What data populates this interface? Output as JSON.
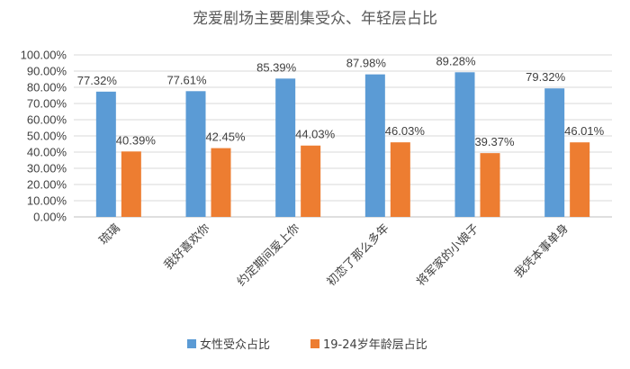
{
  "chart_data": {
    "type": "bar",
    "title": "宠爱剧场主要剧集受众、年轻层占比",
    "categories": [
      "琉璃",
      "我好喜欢你",
      "约定期间爱上你",
      "初恋了那么多年",
      "将军家的小娘子",
      "我凭本事单身"
    ],
    "series": [
      {
        "name": "女性受众占比",
        "values": [
          77.32,
          77.61,
          85.39,
          87.98,
          89.28,
          79.32
        ],
        "labels": [
          "77.32%",
          "77.61%",
          "85.39%",
          "87.98%",
          "89.28%",
          "79.32%"
        ],
        "color": "#5B9BD5"
      },
      {
        "name": "19-24岁年龄层占比",
        "values": [
          40.39,
          42.45,
          44.03,
          46.03,
          39.37,
          46.01
        ],
        "labels": [
          "40.39%",
          "42.45%",
          "44.03%",
          "46.03%",
          "39.37%",
          "46.01%"
        ],
        "color": "#ED7D31"
      }
    ],
    "ylim": [
      0,
      100
    ],
    "yticks": [
      "0.00%",
      "10.00%",
      "20.00%",
      "30.00%",
      "40.00%",
      "50.00%",
      "60.00%",
      "70.00%",
      "80.00%",
      "90.00%",
      "100.00%"
    ],
    "grid": true,
    "legend_position": "bottom"
  }
}
